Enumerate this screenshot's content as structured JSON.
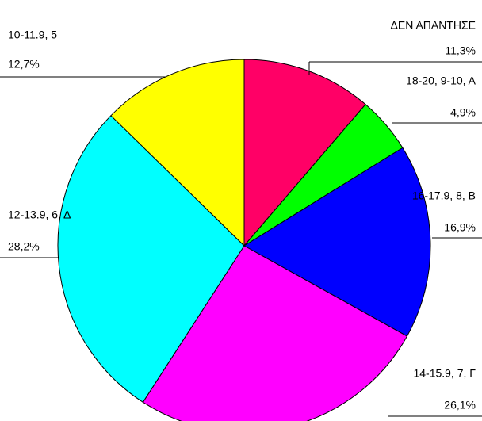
{
  "chart_data": {
    "type": "pie",
    "categories": [
      "ΔΕΝ ΑΠΑΝΤΗΣΕ",
      "18-20, 9-10, Α",
      "16-17.9, 8, Β",
      "14-15.9, 7, Γ",
      "12-13.9, 6, Δ",
      "10-11.9, 5"
    ],
    "values": [
      11.3,
      4.9,
      16.9,
      26.1,
      28.2,
      12.7
    ],
    "value_labels": [
      "11,3%",
      "4,9%",
      "16,9%",
      "26,1%",
      "28,2%",
      "12,7%"
    ],
    "colors": [
      "#ff0066",
      "#00ff00",
      "#0000ff",
      "#ff00ff",
      "#00ffff",
      "#ffff00"
    ]
  }
}
